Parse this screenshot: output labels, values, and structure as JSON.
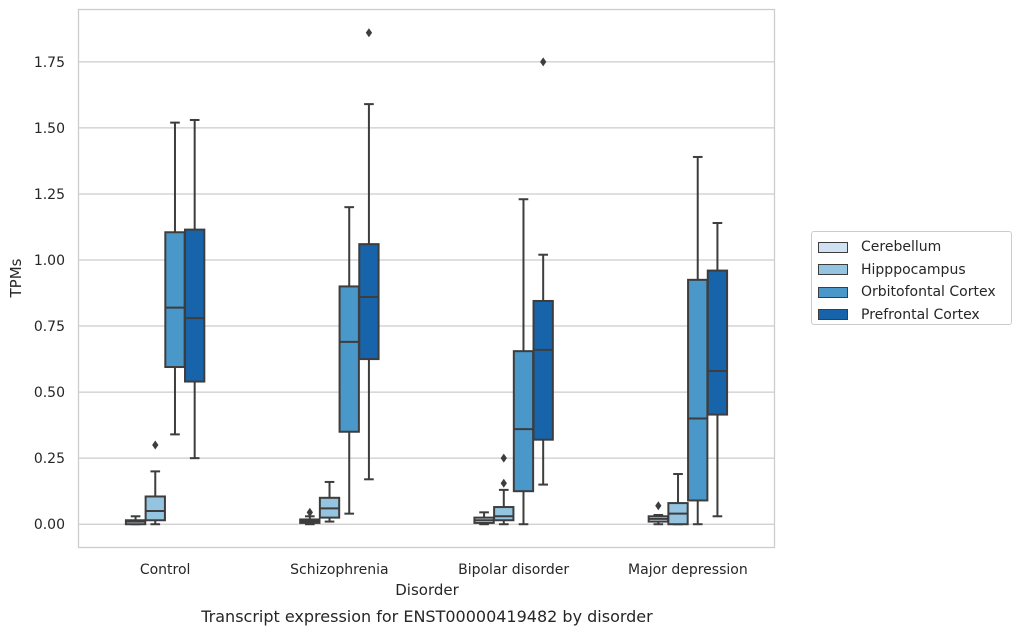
{
  "chart_data": {
    "type": "box",
    "title": "",
    "caption": "Transcript expression for ENST00000419482 by disorder",
    "xlabel": "Disorder",
    "ylabel": "TPMs",
    "ylim": [
      -0.09,
      1.95
    ],
    "yticks": [
      "0.00",
      "0.25",
      "0.50",
      "0.75",
      "1.00",
      "1.25",
      "1.50",
      "1.75"
    ],
    "ytick_values": [
      0,
      0.25,
      0.5,
      0.75,
      1.0,
      1.25,
      1.5,
      1.75
    ],
    "grid": "horizontal",
    "legend_position": "right",
    "categories": [
      "Control",
      "Schizophrenia",
      "Bipolar disorder",
      "Major depression"
    ],
    "series": [
      {
        "name": "Cerebellum",
        "color": "#d0e1f2",
        "boxes": [
          {
            "whisker_low": 0.0,
            "q1": 0.0,
            "median": 0.01,
            "q3": 0.015,
            "whisker_high": 0.03,
            "outliers": []
          },
          {
            "whisker_low": 0.0,
            "q1": 0.005,
            "median": 0.012,
            "q3": 0.018,
            "whisker_high": 0.03,
            "outliers": [
              0.045
            ]
          },
          {
            "whisker_low": 0.0,
            "q1": 0.005,
            "median": 0.015,
            "q3": 0.025,
            "whisker_high": 0.045,
            "outliers": []
          },
          {
            "whisker_low": 0.0,
            "q1": 0.01,
            "median": 0.02,
            "q3": 0.03,
            "whisker_high": 0.035,
            "outliers": [
              0.07
            ]
          }
        ]
      },
      {
        "name": "Hipppocampus",
        "color": "#94c4df",
        "boxes": [
          {
            "whisker_low": 0.0,
            "q1": 0.015,
            "median": 0.05,
            "q3": 0.105,
            "whisker_high": 0.2,
            "outliers": [
              0.3
            ]
          },
          {
            "whisker_low": 0.01,
            "q1": 0.025,
            "median": 0.06,
            "q3": 0.1,
            "whisker_high": 0.16,
            "outliers": []
          },
          {
            "whisker_low": 0.0,
            "q1": 0.015,
            "median": 0.03,
            "q3": 0.065,
            "whisker_high": 0.13,
            "outliers": [
              0.155,
              0.25
            ]
          },
          {
            "whisker_low": 0.0,
            "q1": 0.0,
            "median": 0.04,
            "q3": 0.08,
            "whisker_high": 0.19,
            "outliers": []
          }
        ]
      },
      {
        "name": "Orbitofontal Cortex",
        "color": "#4a98c9",
        "boxes": [
          {
            "whisker_low": 0.34,
            "q1": 0.595,
            "median": 0.82,
            "q3": 1.105,
            "whisker_high": 1.52,
            "outliers": []
          },
          {
            "whisker_low": 0.04,
            "q1": 0.35,
            "median": 0.69,
            "q3": 0.9,
            "whisker_high": 1.2,
            "outliers": []
          },
          {
            "whisker_low": 0.0,
            "q1": 0.125,
            "median": 0.36,
            "q3": 0.655,
            "whisker_high": 1.23,
            "outliers": []
          },
          {
            "whisker_low": 0.0,
            "q1": 0.09,
            "median": 0.4,
            "q3": 0.925,
            "whisker_high": 1.39,
            "outliers": []
          }
        ]
      },
      {
        "name": "Prefrontal Cortex",
        "color": "#1764ab",
        "boxes": [
          {
            "whisker_low": 0.25,
            "q1": 0.54,
            "median": 0.78,
            "q3": 1.115,
            "whisker_high": 1.53,
            "outliers": []
          },
          {
            "whisker_low": 0.17,
            "q1": 0.625,
            "median": 0.86,
            "q3": 1.06,
            "whisker_high": 1.59,
            "outliers": [
              1.86
            ]
          },
          {
            "whisker_low": 0.15,
            "q1": 0.32,
            "median": 0.66,
            "q3": 0.845,
            "whisker_high": 1.02,
            "outliers": [
              1.75
            ]
          },
          {
            "whisker_low": 0.03,
            "q1": 0.415,
            "median": 0.58,
            "q3": 0.96,
            "whisker_high": 1.14,
            "outliers": []
          }
        ]
      }
    ]
  }
}
